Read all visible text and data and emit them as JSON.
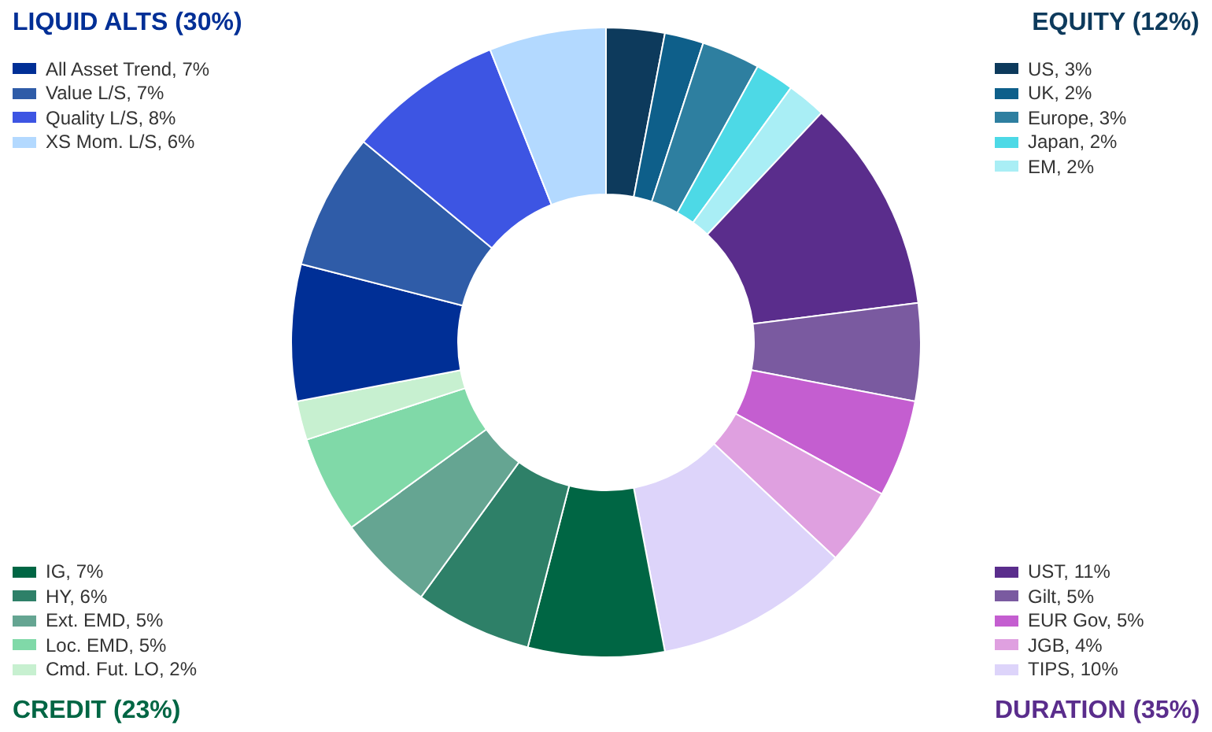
{
  "chart_data": {
    "type": "donut",
    "categories": [
      "US, 3%",
      "UK, 2%",
      "Europe, 3%",
      "Japan, 2%",
      "EM, 2%",
      "UST, 11%",
      "Gilt, 5%",
      "EUR Gov, 5%",
      "JGB, 4%",
      "TIPS, 10%",
      "IG, 7%",
      "HY, 6%",
      "Ext. EMD, 5%",
      "Loc. EMD, 5%",
      "Cmd. Fut. LO, 2%",
      "All Asset Trend, 7%",
      "Value L/S, 7%",
      "Quality L/S, 8%",
      "XS Mom. L/S, 6%"
    ],
    "values": [
      3,
      2,
      3,
      2,
      2,
      11,
      5,
      5,
      4,
      10,
      7,
      6,
      5,
      5,
      2,
      7,
      7,
      8,
      6
    ],
    "colors": [
      "#0d3a5c",
      "#0e5f8a",
      "#2e7fa0",
      "#4dd9e6",
      "#a9eef5",
      "#5a2d8c",
      "#7a5aa0",
      "#c45ed0",
      "#dfa0e0",
      "#ddd4fa",
      "#006644",
      "#2e8068",
      "#65a592",
      "#80d9a8",
      "#c7f0d0",
      "#002f96",
      "#2f5ca8",
      "#3d55e3",
      "#b3d9ff"
    ],
    "legend": "left",
    "annotations": [
      "EQUITY (12%)",
      "DURATION (35%)",
      "CREDIT (23%)",
      "LIQUID ALTS (30%)"
    ]
  }
}
